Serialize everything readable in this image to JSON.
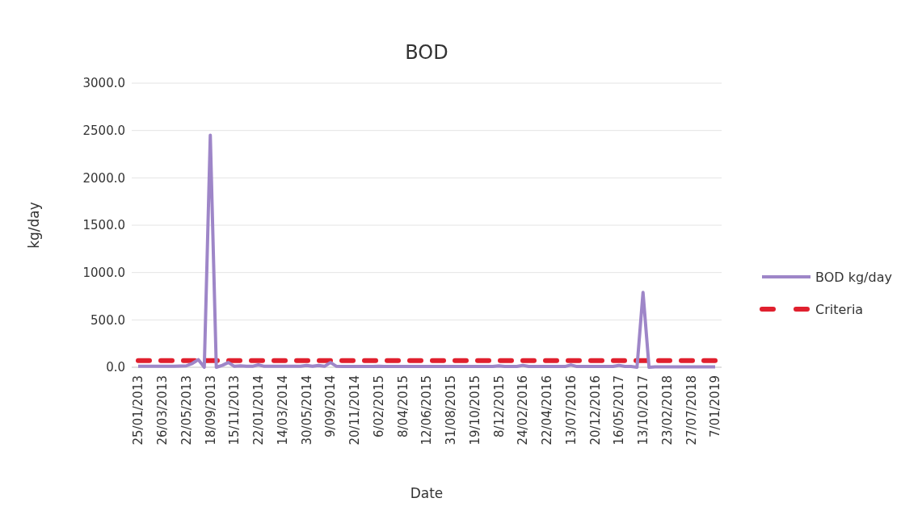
{
  "chart_data": {
    "type": "line",
    "title": "BOD",
    "xlabel": "Date",
    "ylabel": "kg/day",
    "categories": [
      "25/01/2013",
      null,
      null,
      null,
      "26/03/2013",
      null,
      null,
      null,
      "22/05/2013",
      null,
      null,
      null,
      "18/09/2013",
      null,
      null,
      null,
      "15/11/2013",
      null,
      null,
      null,
      "22/01/2014",
      null,
      null,
      null,
      "14/03/2014",
      null,
      null,
      null,
      "30/05/2014",
      null,
      null,
      null,
      "9/09/2014",
      null,
      null,
      null,
      "20/11/2014",
      null,
      null,
      null,
      "6/02/2015",
      null,
      null,
      null,
      "8/04/2015",
      null,
      null,
      null,
      "12/06/2015",
      null,
      null,
      null,
      "31/08/2015",
      null,
      null,
      null,
      "19/10/2015",
      null,
      null,
      null,
      "8/12/2015",
      null,
      null,
      null,
      "24/02/2016",
      null,
      null,
      null,
      "22/04/2016",
      null,
      null,
      null,
      "13/07/2016",
      null,
      null,
      null,
      "20/12/2016",
      null,
      null,
      null,
      "16/05/2017",
      null,
      null,
      null,
      "13/10/2017",
      null,
      null,
      null,
      "23/02/2018",
      null,
      null,
      null,
      "27/07/2018",
      null,
      null,
      null,
      "7/01/2019"
    ],
    "series": [
      {
        "name": "BOD kg/day",
        "color": "#9e86c8",
        "line_style": "solid",
        "values": [
          10,
          10,
          10,
          10,
          10,
          10,
          10,
          12,
          15,
          40,
          80,
          0,
          2450,
          0,
          20,
          50,
          10,
          15,
          10,
          10,
          25,
          10,
          10,
          10,
          10,
          10,
          10,
          10,
          20,
          10,
          20,
          10,
          50,
          10,
          8,
          8,
          8,
          8,
          8,
          8,
          10,
          8,
          8,
          8,
          8,
          8,
          8,
          8,
          8,
          8,
          8,
          8,
          8,
          8,
          8,
          8,
          8,
          8,
          8,
          8,
          15,
          8,
          8,
          8,
          20,
          8,
          8,
          8,
          8,
          8,
          8,
          8,
          25,
          8,
          8,
          8,
          8,
          8,
          8,
          8,
          20,
          8,
          8,
          0,
          790,
          0,
          5,
          5,
          5,
          5,
          5,
          5,
          5,
          5,
          5,
          5,
          5
        ]
      },
      {
        "name": "Criteria",
        "color": "#e0202e",
        "line_style": "dashed",
        "values": [
          70,
          70,
          70,
          70,
          70,
          70,
          70,
          70,
          70,
          70,
          70,
          70,
          70,
          70,
          70,
          70,
          70,
          70,
          70,
          70,
          70,
          70,
          70,
          70,
          70,
          70,
          70,
          70,
          70,
          70,
          70,
          70,
          70,
          70,
          70,
          70,
          70,
          70,
          70,
          70,
          70,
          70,
          70,
          70,
          70,
          70,
          70,
          70,
          70,
          70,
          70,
          70,
          70,
          70,
          70,
          70,
          70,
          70,
          70,
          70,
          70,
          70,
          70,
          70,
          70,
          70,
          70,
          70,
          70,
          70,
          70,
          70,
          70,
          70,
          70,
          70,
          70,
          70,
          70,
          70,
          70,
          70,
          70,
          70,
          70,
          70,
          70,
          70,
          70,
          70,
          70,
          70,
          70,
          70,
          70,
          70,
          70
        ]
      }
    ],
    "ylim": [
      0,
      3000
    ],
    "yticks": [
      {
        "value": 0,
        "label": "0.0"
      },
      {
        "value": 500,
        "label": "500.0"
      },
      {
        "value": 1000,
        "label": "1000.0"
      },
      {
        "value": 1500,
        "label": "1500.0"
      },
      {
        "value": 2000,
        "label": "2000.0"
      },
      {
        "value": 2500,
        "label": "2500.0"
      },
      {
        "value": 3000,
        "label": "3000.0"
      }
    ],
    "grid": "y",
    "legend": "right"
  }
}
